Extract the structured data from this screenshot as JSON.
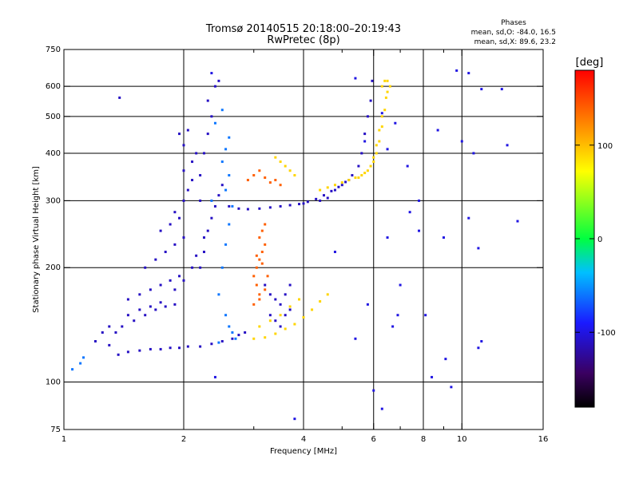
{
  "title_line1": "Tromsø 20140515 20:18:00–20:19:43",
  "title_line2": "RwPretec (8p)",
  "phase_box": {
    "heading": "Phases",
    "line_o": "mean, sd,O: -84.0, 16.5",
    "line_x": "mean, sd,X:  89.6, 23.2"
  },
  "colorbar": {
    "unit_label": "[deg]",
    "range": [
      -180,
      180
    ],
    "ticks": [
      {
        "value": 100,
        "label": "100"
      },
      {
        "value": 0,
        "label": "0"
      },
      {
        "value": -100,
        "label": "-100"
      }
    ]
  },
  "chart_data": {
    "type": "scatter",
    "xlabel": "Frequency [MHz]",
    "ylabel": "Stationary phase Virtual Height [km]",
    "xscale": "log",
    "yscale": "log",
    "xlim": [
      1,
      16
    ],
    "ylim": [
      75,
      750
    ],
    "xticks": [
      {
        "value": 1,
        "label": "1"
      },
      {
        "value": 2,
        "label": "2"
      },
      {
        "value": 4,
        "label": "4"
      },
      {
        "value": 6,
        "label": "6"
      },
      {
        "value": 8,
        "label": "8"
      },
      {
        "value": 10,
        "label": "10"
      },
      {
        "value": 16,
        "label": "16"
      }
    ],
    "yticks": [
      {
        "value": 75,
        "label": "75"
      },
      {
        "value": 100,
        "label": "100"
      },
      {
        "value": 200,
        "label": "200"
      },
      {
        "value": 300,
        "label": "300"
      },
      {
        "value": 400,
        "label": "400"
      },
      {
        "value": 500,
        "label": "500"
      },
      {
        "value": 600,
        "label": "600"
      },
      {
        "value": 750,
        "label": "750"
      }
    ],
    "grid_x": [
      2,
      4,
      6,
      8,
      10
    ],
    "grid_y": [
      100,
      200,
      300,
      400,
      500,
      600
    ],
    "minor_x": [
      3,
      5,
      7,
      9
    ],
    "color_by": "phase (deg)",
    "series": [
      {
        "points": [
          [
            1.37,
            118
          ],
          [
            1.45,
            120
          ],
          [
            1.55,
            121
          ],
          [
            1.65,
            122
          ],
          [
            1.75,
            122
          ],
          [
            1.85,
            123
          ],
          [
            1.95,
            123
          ],
          [
            2.05,
            124
          ],
          [
            2.2,
            124
          ],
          [
            2.35,
            126
          ],
          [
            2.5,
            128
          ],
          [
            2.65,
            130
          ],
          [
            2.75,
            133
          ],
          [
            2.85,
            135
          ],
          [
            1.3,
            125
          ],
          [
            1.35,
            135
          ],
          [
            1.4,
            140
          ],
          [
            1.5,
            145
          ],
          [
            1.6,
            150
          ],
          [
            1.7,
            155
          ],
          [
            1.8,
            158
          ],
          [
            1.9,
            160
          ],
          [
            1.45,
            165
          ],
          [
            1.55,
            170
          ],
          [
            1.65,
            175
          ],
          [
            1.75,
            180
          ],
          [
            1.85,
            185
          ],
          [
            1.95,
            190
          ],
          [
            1.6,
            200
          ],
          [
            1.7,
            210
          ],
          [
            1.8,
            220
          ],
          [
            1.9,
            230
          ],
          [
            2.0,
            240
          ],
          [
            1.75,
            250
          ],
          [
            1.85,
            260
          ],
          [
            1.95,
            270
          ],
          [
            1.9,
            280
          ],
          [
            2.0,
            300
          ],
          [
            2.05,
            320
          ],
          [
            2.1,
            340
          ],
          [
            2.0,
            360
          ],
          [
            2.1,
            380
          ],
          [
            2.15,
            400
          ],
          [
            2.0,
            420
          ],
          [
            1.95,
            450
          ],
          [
            2.05,
            460
          ],
          [
            2.2,
            300
          ],
          [
            2.2,
            350
          ],
          [
            2.25,
            400
          ],
          [
            2.3,
            450
          ],
          [
            2.35,
            500
          ],
          [
            2.3,
            550
          ],
          [
            2.4,
            600
          ],
          [
            2.45,
            620
          ],
          [
            2.2,
            200
          ],
          [
            2.25,
            220
          ],
          [
            2.3,
            250
          ],
          [
            2.35,
            270
          ],
          [
            2.4,
            290
          ],
          [
            2.45,
            310
          ],
          [
            2.5,
            330
          ],
          [
            2.6,
            290
          ],
          [
            2.75,
            286
          ],
          [
            2.9,
            285
          ],
          [
            3.1,
            286
          ],
          [
            3.3,
            288
          ],
          [
            3.5,
            290
          ],
          [
            3.7,
            292
          ],
          [
            3.9,
            294
          ],
          [
            4.1,
            298
          ],
          [
            4.3,
            303
          ],
          [
            4.5,
            310
          ],
          [
            4.7,
            318
          ],
          [
            4.9,
            326
          ],
          [
            5.1,
            336
          ],
          [
            5.3,
            350
          ],
          [
            5.5,
            370
          ],
          [
            5.6,
            400
          ],
          [
            5.7,
            450
          ],
          [
            5.8,
            500
          ],
          [
            5.9,
            550
          ],
          [
            5.95,
            620
          ],
          [
            1.45,
            150
          ],
          [
            1.55,
            155
          ],
          [
            1.65,
            158
          ],
          [
            1.75,
            162
          ],
          [
            1.3,
            140
          ],
          [
            1.25,
            135
          ],
          [
            1.2,
            128
          ],
          [
            2.1,
            200
          ],
          [
            1.9,
            175
          ],
          [
            2.0,
            185
          ],
          [
            2.15,
            215
          ],
          [
            2.25,
            240
          ],
          [
            3.2,
            180
          ],
          [
            3.3,
            170
          ],
          [
            3.4,
            165
          ],
          [
            3.5,
            160
          ],
          [
            3.6,
            170
          ],
          [
            3.7,
            180
          ],
          [
            3.3,
            150
          ],
          [
            3.4,
            145
          ],
          [
            3.5,
            140
          ],
          [
            3.6,
            150
          ],
          [
            3.7,
            155
          ],
          [
            1.38,
            560
          ],
          [
            4.0,
            295
          ],
          [
            4.4,
            300
          ],
          [
            4.6,
            305
          ],
          [
            4.8,
            320
          ],
          [
            5.0,
            330
          ],
          [
            5.2,
            340
          ]
        ],
        "phase": -110
      },
      {
        "points": [
          [
            2.5,
            200
          ],
          [
            2.55,
            230
          ],
          [
            2.6,
            260
          ],
          [
            2.65,
            290
          ],
          [
            2.55,
            320
          ],
          [
            2.6,
            350
          ],
          [
            2.5,
            380
          ],
          [
            2.55,
            410
          ],
          [
            2.6,
            440
          ],
          [
            2.45,
            170
          ],
          [
            2.55,
            150
          ],
          [
            2.6,
            140
          ],
          [
            2.65,
            135
          ],
          [
            2.4,
            480
          ],
          [
            2.5,
            520
          ],
          [
            2.7,
            130
          ],
          [
            1.05,
            108
          ],
          [
            1.1,
            112
          ],
          [
            1.12,
            116
          ],
          [
            2.45,
            127
          ],
          [
            2.35,
            300
          ]
        ],
        "phase": -60
      },
      {
        "points": [
          [
            3.05,
            200
          ],
          [
            3.1,
            210
          ],
          [
            3.15,
            220
          ],
          [
            3.2,
            230
          ],
          [
            3.1,
            240
          ],
          [
            3.15,
            250
          ],
          [
            3.05,
            180
          ],
          [
            3.1,
            170
          ],
          [
            3.0,
            190
          ],
          [
            3.2,
            260
          ],
          [
            2.9,
            340
          ],
          [
            3.0,
            350
          ],
          [
            3.1,
            360
          ],
          [
            3.2,
            345
          ],
          [
            3.3,
            335
          ],
          [
            3.4,
            340
          ],
          [
            3.5,
            330
          ],
          [
            3.0,
            160
          ],
          [
            3.1,
            165
          ],
          [
            3.2,
            175
          ],
          [
            3.25,
            190
          ],
          [
            3.15,
            205
          ],
          [
            3.05,
            215
          ]
        ],
        "phase": 140
      },
      {
        "points": [
          [
            3.0,
            130
          ],
          [
            3.2,
            131
          ],
          [
            3.4,
            134
          ],
          [
            3.6,
            138
          ],
          [
            3.8,
            142
          ],
          [
            4.0,
            148
          ],
          [
            4.2,
            155
          ],
          [
            4.4,
            163
          ],
          [
            4.6,
            170
          ],
          [
            3.1,
            140
          ],
          [
            3.3,
            145
          ],
          [
            3.5,
            150
          ],
          [
            3.7,
            158
          ],
          [
            3.9,
            165
          ],
          [
            6.3,
            600
          ],
          [
            6.4,
            620
          ],
          [
            6.5,
            580
          ],
          [
            6.4,
            520
          ],
          [
            6.3,
            470
          ],
          [
            6.2,
            430
          ],
          [
            6.1,
            400
          ],
          [
            6.0,
            380
          ],
          [
            5.8,
            360
          ],
          [
            5.6,
            350
          ],
          [
            5.4,
            345
          ],
          [
            5.2,
            340
          ],
          [
            5.0,
            335
          ],
          [
            4.8,
            330
          ],
          [
            4.6,
            325
          ],
          [
            4.4,
            320
          ],
          [
            6.5,
            620
          ],
          [
            6.6,
            600
          ],
          [
            6.45,
            560
          ],
          [
            6.3,
            500
          ],
          [
            6.2,
            460
          ],
          [
            6.1,
            420
          ],
          [
            6.0,
            390
          ],
          [
            5.9,
            370
          ],
          [
            5.7,
            355
          ],
          [
            5.5,
            345
          ],
          [
            3.5,
            380
          ],
          [
            3.6,
            370
          ],
          [
            3.7,
            360
          ],
          [
            3.8,
            350
          ],
          [
            3.4,
            390
          ]
        ],
        "phase": 90
      },
      {
        "points": [
          [
            6.0,
            95
          ],
          [
            6.3,
            85
          ],
          [
            2.4,
            103
          ],
          [
            2.35,
            650
          ],
          [
            5.4,
            630
          ],
          [
            9.7,
            660
          ],
          [
            10.4,
            650
          ],
          [
            11.2,
            590
          ],
          [
            12.6,
            590
          ],
          [
            13.0,
            420
          ],
          [
            8.7,
            460
          ],
          [
            10.0,
            430
          ],
          [
            10.7,
            400
          ],
          [
            7.3,
            370
          ],
          [
            10.4,
            270
          ],
          [
            13.8,
            265
          ],
          [
            9.0,
            240
          ],
          [
            11.0,
            225
          ],
          [
            4.8,
            220
          ],
          [
            6.5,
            410
          ],
          [
            7.8,
            300
          ],
          [
            5.7,
            430
          ],
          [
            3.8,
            80
          ],
          [
            9.1,
            115
          ],
          [
            8.4,
            103
          ],
          [
            9.4,
            97
          ],
          [
            11.0,
            123
          ],
          [
            11.2,
            128
          ],
          [
            5.4,
            130
          ],
          [
            6.7,
            140
          ],
          [
            6.9,
            150
          ],
          [
            5.8,
            160
          ],
          [
            8.1,
            150
          ],
          [
            7.0,
            180
          ],
          [
            6.5,
            240
          ],
          [
            7.4,
            280
          ],
          [
            7.8,
            250
          ],
          [
            6.3,
            510
          ],
          [
            6.8,
            480
          ]
        ],
        "phase": -100
      }
    ]
  }
}
